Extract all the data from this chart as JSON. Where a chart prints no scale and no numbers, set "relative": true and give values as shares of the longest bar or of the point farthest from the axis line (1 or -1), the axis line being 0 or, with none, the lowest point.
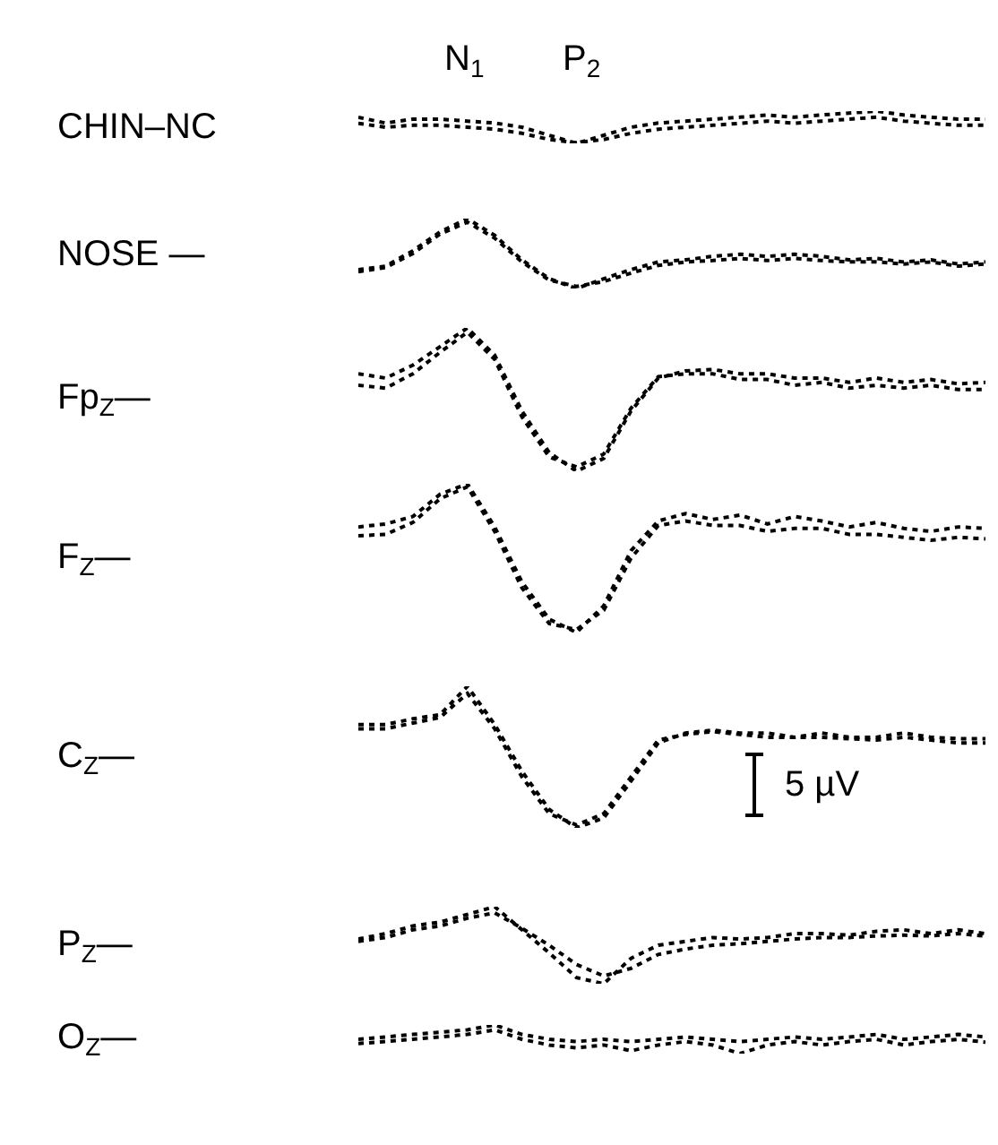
{
  "chart_data": [
    {
      "type": "line",
      "relative": true,
      "line_style": "dotted",
      "ylabel": "CHIN–NC",
      "annotations": [
        "N$_{1}$",
        "P$_{2}$"
      ],
      "categories": [
        null,
        null,
        null,
        null,
        null,
        null,
        null,
        null,
        null,
        null,
        null,
        null,
        null,
        null,
        null,
        null,
        null,
        null,
        null,
        null,
        null,
        null,
        null,
        null
      ],
      "series": [
        {
          "color": "#000000",
          "values": [
            0.81,
            0.63,
            0.75,
            0.75,
            0.69,
            0.63,
            0.5,
            0.25,
            0,
            0.25,
            0.5,
            0.63,
            0.69,
            0.75,
            0.81,
            0.88,
            0.81,
            0.88,
            0.94,
            1,
            0.88,
            0.81,
            0.75,
            0.75
          ]
        },
        {
          "color": "#000000",
          "values": [
            0.62,
            0.5,
            0.56,
            0.56,
            0.5,
            0.44,
            0.31,
            0.12,
            0.02,
            0.12,
            0.31,
            0.44,
            0.5,
            0.56,
            0.62,
            0.69,
            0.62,
            0.69,
            0.75,
            0.81,
            0.69,
            0.62,
            0.56,
            0.56
          ]
        }
      ]
    },
    {
      "type": "line",
      "relative": true,
      "line_style": "dotted",
      "ylabel": "NOSE —",
      "categories": [
        null,
        null,
        null,
        null,
        null,
        null,
        null,
        null,
        null,
        null,
        null,
        null,
        null,
        null,
        null,
        null,
        null,
        null,
        null,
        null,
        null,
        null,
        null,
        null
      ],
      "series": [
        {
          "color": "#000000",
          "values": [
            0.27,
            0.32,
            0.54,
            0.81,
            1,
            0.76,
            0.41,
            0.14,
            0,
            0.14,
            0.27,
            0.38,
            0.41,
            0.46,
            0.49,
            0.46,
            0.49,
            0.46,
            0.41,
            0.43,
            0.38,
            0.41,
            0.35,
            0.38
          ]
        },
        {
          "color": "#000000",
          "values": [
            0.24,
            0.3,
            0.5,
            0.78,
            0.95,
            0.72,
            0.38,
            0.12,
            0.03,
            0.1,
            0.22,
            0.33,
            0.38,
            0.4,
            0.43,
            0.4,
            0.43,
            0.4,
            0.38,
            0.38,
            0.35,
            0.38,
            0.32,
            0.35
          ]
        }
      ]
    },
    {
      "type": "line",
      "relative": true,
      "line_style": "dotted",
      "ylabel": "Fp$_{Z}$—",
      "categories": [
        null,
        null,
        null,
        null,
        null,
        null,
        null,
        null,
        null,
        null,
        null,
        null,
        null,
        null,
        null,
        null,
        null,
        null,
        null,
        null,
        null,
        null,
        null,
        null
      ],
      "series": [
        {
          "color": "#000000",
          "values": [
            0.68,
            0.65,
            0.74,
            0.87,
            1,
            0.81,
            0.42,
            0.13,
            0,
            0.09,
            0.42,
            0.65,
            0.7,
            0.71,
            0.68,
            0.68,
            0.65,
            0.65,
            0.62,
            0.65,
            0.62,
            0.64,
            0.61,
            0.62
          ]
        },
        {
          "color": "#000000",
          "values": [
            0.6,
            0.58,
            0.68,
            0.83,
            0.97,
            0.78,
            0.38,
            0.1,
            0.03,
            0.12,
            0.44,
            0.66,
            0.68,
            0.68,
            0.64,
            0.64,
            0.6,
            0.62,
            0.58,
            0.6,
            0.58,
            0.6,
            0.57,
            0.57
          ]
        }
      ]
    },
    {
      "type": "line",
      "relative": true,
      "line_style": "dotted",
      "ylabel": "F$_{Z}$—",
      "categories": [
        null,
        null,
        null,
        null,
        null,
        null,
        null,
        null,
        null,
        null,
        null,
        null,
        null,
        null,
        null,
        null,
        null,
        null,
        null,
        null,
        null,
        null,
        null,
        null
      ],
      "series": [
        {
          "color": "#000000",
          "values": [
            0.71,
            0.73,
            0.78,
            0.93,
            1,
            0.71,
            0.34,
            0.09,
            0,
            0.18,
            0.55,
            0.75,
            0.8,
            0.76,
            0.79,
            0.73,
            0.78,
            0.75,
            0.71,
            0.74,
            0.7,
            0.68,
            0.71,
            0.7
          ]
        },
        {
          "color": "#000000",
          "values": [
            0.65,
            0.66,
            0.74,
            0.9,
            0.98,
            0.68,
            0.3,
            0.06,
            0.02,
            0.15,
            0.5,
            0.72,
            0.75,
            0.72,
            0.72,
            0.68,
            0.7,
            0.7,
            0.66,
            0.66,
            0.64,
            0.62,
            0.64,
            0.63
          ]
        }
      ]
    },
    {
      "type": "line",
      "relative": true,
      "line_style": "dotted",
      "ylabel": "C$_{Z}$—",
      "annotations": [
        "5 µV"
      ],
      "categories": [
        null,
        null,
        null,
        null,
        null,
        null,
        null,
        null,
        null,
        null,
        null,
        null,
        null,
        null,
        null,
        null,
        null,
        null,
        null,
        null,
        null,
        null,
        null,
        null
      ],
      "series": [
        {
          "color": "#000000",
          "values": [
            0.73,
            0.73,
            0.77,
            0.8,
            1,
            0.73,
            0.4,
            0.13,
            0,
            0.07,
            0.33,
            0.6,
            0.67,
            0.69,
            0.67,
            0.67,
            0.64,
            0.67,
            0.64,
            0.64,
            0.67,
            0.64,
            0.63,
            0.63
          ]
        },
        {
          "color": "#000000",
          "values": [
            0.7,
            0.7,
            0.74,
            0.78,
            0.95,
            0.7,
            0.36,
            0.1,
            0.02,
            0.1,
            0.36,
            0.62,
            0.66,
            0.68,
            0.66,
            0.64,
            0.64,
            0.64,
            0.63,
            0.62,
            0.64,
            0.62,
            0.6,
            0.6
          ]
        }
      ]
    },
    {
      "type": "line",
      "relative": true,
      "line_style": "dotted",
      "ylabel": "P$_{Z}$—",
      "categories": [
        null,
        null,
        null,
        null,
        null,
        null,
        null,
        null,
        null,
        null,
        null,
        null,
        null,
        null,
        null,
        null,
        null,
        null,
        null,
        null,
        null,
        null,
        null,
        null
      ],
      "series": [
        {
          "color": "#000000",
          "values": [
            0.58,
            0.65,
            0.75,
            0.8,
            0.9,
            1,
            0.7,
            0.4,
            0.08,
            0,
            0.33,
            0.5,
            0.55,
            0.6,
            0.58,
            0.6,
            0.65,
            0.65,
            0.63,
            0.68,
            0.7,
            0.65,
            0.7,
            0.65
          ]
        },
        {
          "color": "#000000",
          "values": [
            0.55,
            0.6,
            0.7,
            0.75,
            0.85,
            0.92,
            0.72,
            0.5,
            0.25,
            0.1,
            0.2,
            0.38,
            0.45,
            0.5,
            0.52,
            0.55,
            0.58,
            0.6,
            0.6,
            0.62,
            0.63,
            0.62,
            0.65,
            0.62
          ]
        }
      ]
    },
    {
      "type": "line",
      "relative": true,
      "line_style": "dotted",
      "ylabel": "O$_{Z}$—",
      "categories": [
        null,
        null,
        null,
        null,
        null,
        null,
        null,
        null,
        null,
        null,
        null,
        null,
        null,
        null,
        null,
        null,
        null,
        null,
        null,
        null,
        null,
        null,
        null,
        null
      ],
      "series": [
        {
          "color": "#000000",
          "values": [
            0.5,
            0.58,
            0.67,
            0.75,
            0.83,
            1,
            0.67,
            0.5,
            0.42,
            0.5,
            0.42,
            0.5,
            0.58,
            0.5,
            0.42,
            0.5,
            0.58,
            0.5,
            0.58,
            0.67,
            0.5,
            0.58,
            0.67,
            0.58
          ]
        },
        {
          "color": "#000000",
          "values": [
            0.35,
            0.42,
            0.5,
            0.58,
            0.67,
            0.83,
            0.5,
            0.3,
            0.2,
            0.3,
            0.1,
            0.3,
            0.42,
            0.3,
            0,
            0.3,
            0.42,
            0.3,
            0.42,
            0.5,
            0.3,
            0.42,
            0.5,
            0.4
          ]
        }
      ]
    }
  ]
}
